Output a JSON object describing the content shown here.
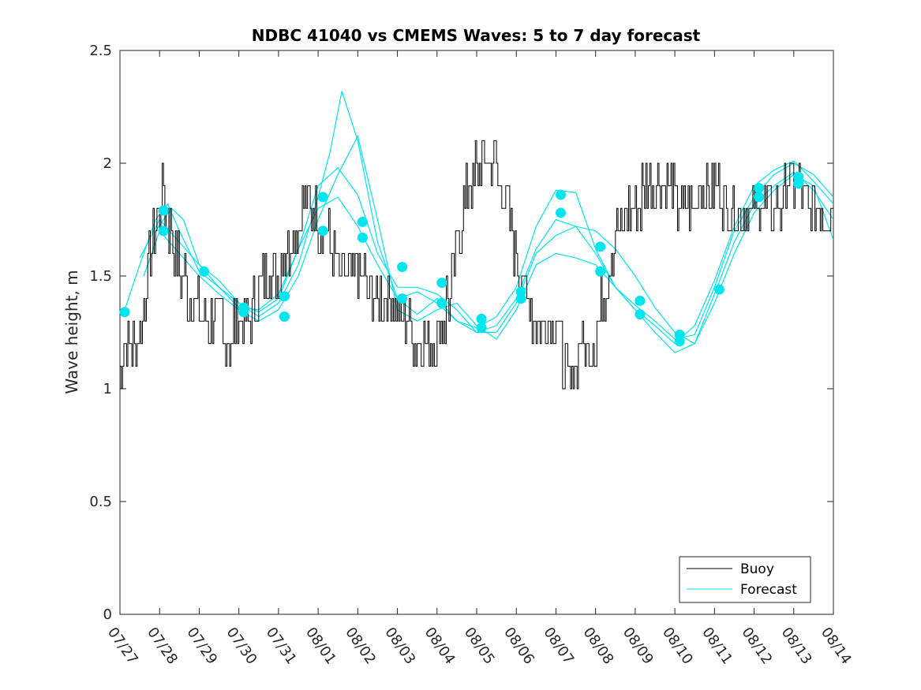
{
  "chart_data": {
    "type": "line",
    "title": "NDBC 41040 vs CMEMS Waves: 5 to 7 day forecast",
    "xlabel": "",
    "ylabel": "Wave height, m",
    "xlim": [
      0,
      18
    ],
    "ylim": [
      0,
      2.5
    ],
    "yticks": [
      0,
      0.5,
      1,
      1.5,
      2,
      2.5
    ],
    "ytick_labels": [
      "0",
      "0.5",
      "1",
      "1.5",
      "2",
      "2.5"
    ],
    "xtick_labels": [
      "07/27",
      "07/28",
      "07/29",
      "07/30",
      "07/31",
      "08/01",
      "08/02",
      "08/03",
      "08/04",
      "08/05",
      "08/06",
      "08/07",
      "08/08",
      "08/09",
      "08/10",
      "08/11",
      "08/12",
      "08/13",
      "08/14"
    ],
    "grid": false,
    "legend": {
      "position": "bottom-right",
      "entries": [
        "Buoy",
        "Forecast"
      ]
    },
    "colors": {
      "buoy": "#000000",
      "forecast": "#00e5ee",
      "markers": "#00e5ee",
      "axes": "#262626"
    },
    "buoy": {
      "name": "Buoy",
      "x": [
        0,
        0.1,
        0.2,
        0.4,
        0.6,
        0.8,
        1.0,
        1.1,
        1.2,
        1.4,
        1.6,
        1.8,
        2.0,
        2.2,
        2.4,
        2.6,
        2.8,
        3.0,
        3.2,
        3.4,
        3.6,
        3.8,
        4.0,
        4.2,
        4.4,
        4.6,
        4.8,
        5.0,
        5.2,
        5.4,
        5.6,
        5.8,
        6.0,
        6.2,
        6.4,
        6.6,
        6.8,
        7.0,
        7.2,
        7.4,
        7.6,
        7.8,
        8.0,
        8.2,
        8.4,
        8.6,
        8.8,
        9.0,
        9.2,
        9.4,
        9.6,
        9.8,
        10.0,
        10.2,
        10.4,
        10.6,
        10.8,
        11.0,
        11.1,
        11.2,
        11.4,
        11.6,
        11.8,
        12.0,
        12.2,
        12.4,
        12.6,
        12.8,
        13.0,
        13.2,
        13.4,
        13.6,
        13.8,
        14.0,
        14.2,
        14.4,
        14.5,
        14.6,
        14.8,
        15.0,
        15.2,
        15.4,
        15.6,
        15.8,
        16.0,
        16.2,
        16.4,
        16.6,
        16.8,
        17.0,
        17.2,
        17.4,
        17.6,
        17.8,
        18.0
      ],
      "values": [
        1.0,
        1.2,
        1.2,
        1.2,
        1.3,
        1.6,
        1.8,
        1.9,
        1.8,
        1.6,
        1.5,
        1.4,
        1.35,
        1.3,
        1.35,
        1.25,
        1.2,
        1.3,
        1.3,
        1.35,
        1.5,
        1.55,
        1.5,
        1.6,
        1.7,
        1.75,
        1.8,
        1.75,
        1.7,
        1.6,
        1.5,
        1.45,
        1.55,
        1.45,
        1.4,
        1.45,
        1.4,
        1.35,
        1.3,
        1.25,
        1.2,
        1.15,
        1.2,
        1.3,
        1.45,
        1.7,
        1.9,
        1.95,
        2.0,
        2.05,
        1.9,
        1.8,
        1.6,
        1.45,
        1.35,
        1.3,
        1.3,
        1.3,
        1.25,
        1.1,
        1.0,
        1.15,
        1.2,
        1.2,
        1.4,
        1.55,
        1.7,
        1.75,
        1.8,
        1.85,
        1.85,
        1.9,
        1.85,
        1.85,
        1.8,
        1.75,
        1.8,
        1.85,
        1.9,
        1.9,
        1.85,
        1.8,
        1.8,
        1.75,
        1.8,
        1.85,
        1.8,
        1.8,
        1.85,
        1.9,
        1.85,
        1.8,
        1.8,
        1.8,
        1.8
      ]
    },
    "forecast_series": [
      {
        "name": "Forecast",
        "x": [
          0.1,
          0.5,
          0.9,
          1.2,
          1.5,
          2.0,
          2.5,
          3.0,
          3.5,
          4.0,
          4.5,
          5.0,
          5.5,
          6.0,
          6.5,
          7.0,
          7.5,
          8.0,
          8.5,
          9.0,
          9.5,
          10.0,
          10.5,
          11.0,
          11.5,
          12.0,
          12.5,
          13.0,
          13.5,
          14.0,
          14.5,
          15.0,
          15.5,
          16.0,
          16.5,
          17.0,
          17.5,
          18.0
        ],
        "values": [
          1.34,
          1.55,
          1.75,
          1.82,
          1.7,
          1.52,
          1.45,
          1.36,
          1.35,
          1.42,
          1.62,
          1.8,
          1.85,
          1.72,
          1.55,
          1.4,
          1.43,
          1.38,
          1.3,
          1.27,
          1.32,
          1.45,
          1.72,
          1.88,
          1.87,
          1.62,
          1.45,
          1.37,
          1.3,
          1.22,
          1.24,
          1.45,
          1.7,
          1.85,
          1.95,
          2.0,
          1.95,
          1.85
        ]
      },
      {
        "name": "Forecast",
        "x": [
          0.5,
          1.0,
          1.5,
          2.0,
          2.5,
          3.0,
          3.5,
          4.0,
          4.5,
          5.0,
          5.3,
          5.6,
          6.0,
          6.5,
          7.0,
          7.5,
          8.0,
          8.5,
          9.0,
          9.5,
          10.0,
          10.5,
          11.0,
          11.5,
          12.0,
          12.5,
          13.0,
          13.5,
          14.0,
          14.5,
          15.0,
          15.5,
          16.0,
          16.5,
          17.0,
          17.5,
          18.0
        ],
        "values": [
          1.58,
          1.75,
          1.65,
          1.55,
          1.45,
          1.38,
          1.32,
          1.38,
          1.55,
          1.85,
          2.05,
          2.32,
          2.1,
          1.65,
          1.4,
          1.33,
          1.4,
          1.3,
          1.25,
          1.28,
          1.4,
          1.62,
          1.75,
          1.72,
          1.6,
          1.45,
          1.35,
          1.28,
          1.2,
          1.28,
          1.48,
          1.72,
          1.9,
          1.97,
          2.01,
          1.92,
          1.82
        ]
      },
      {
        "name": "Forecast",
        "x": [
          0.6,
          1.0,
          1.5,
          2.0,
          2.5,
          3.0,
          3.5,
          4.0,
          4.5,
          5.0,
          5.5,
          6.0,
          6.5,
          7.0,
          7.5,
          8.0,
          8.5,
          9.0,
          9.5,
          10.0,
          10.5,
          11.0,
          11.5,
          12.0,
          12.5,
          13.0,
          13.5,
          14.0,
          14.5,
          15.0,
          15.5,
          16.0,
          16.5,
          17.0,
          17.5,
          18.0
        ],
        "values": [
          1.5,
          1.7,
          1.6,
          1.5,
          1.42,
          1.35,
          1.3,
          1.35,
          1.5,
          1.75,
          1.95,
          2.12,
          1.75,
          1.35,
          1.3,
          1.35,
          1.38,
          1.28,
          1.22,
          1.35,
          1.55,
          1.6,
          1.58,
          1.55,
          1.45,
          1.35,
          1.25,
          1.16,
          1.2,
          1.42,
          1.65,
          1.82,
          1.9,
          1.96,
          1.88,
          1.75
        ]
      },
      {
        "name": "Forecast",
        "x": [
          0.9,
          1.3,
          1.6,
          2.0,
          2.5,
          3.0,
          3.5,
          4.0,
          4.5,
          5.0,
          5.5,
          6.0,
          6.5,
          7.0,
          7.5,
          8.0,
          8.5,
          9.0,
          9.5,
          10.0,
          10.5,
          11.0,
          11.5,
          12.0,
          12.5,
          13.0,
          13.5,
          14.0,
          14.5,
          15.0,
          15.5,
          16.0,
          16.5,
          17.0,
          17.5,
          18.0
        ],
        "values": [
          1.7,
          1.8,
          1.75,
          1.55,
          1.48,
          1.38,
          1.34,
          1.4,
          1.62,
          1.9,
          1.98,
          1.86,
          1.6,
          1.45,
          1.45,
          1.42,
          1.35,
          1.25,
          1.25,
          1.38,
          1.6,
          1.68,
          1.72,
          1.7,
          1.62,
          1.5,
          1.36,
          1.25,
          1.2,
          1.38,
          1.6,
          1.78,
          1.88,
          1.95,
          1.9,
          1.66
        ]
      }
    ],
    "forecast_markers": {
      "x": [
        0.12,
        1.1,
        1.1,
        2.12,
        3.12,
        3.12,
        4.15,
        4.15,
        5.12,
        5.12,
        6.12,
        6.12,
        7.12,
        7.12,
        8.12,
        8.12,
        9.12,
        9.12,
        10.12,
        10.12,
        11.12,
        11.12,
        12.12,
        12.12,
        13.12,
        13.12,
        14.12,
        14.12,
        15.12,
        16.12,
        16.12,
        17.12,
        17.12
      ],
      "values": [
        1.34,
        1.79,
        1.7,
        1.52,
        1.36,
        1.34,
        1.41,
        1.32,
        1.85,
        1.7,
        1.74,
        1.67,
        1.54,
        1.4,
        1.47,
        1.38,
        1.31,
        1.27,
        1.43,
        1.4,
        1.86,
        1.78,
        1.63,
        1.52,
        1.39,
        1.33,
        1.24,
        1.21,
        1.44,
        1.89,
        1.85,
        1.94,
        1.91
      ]
    }
  }
}
